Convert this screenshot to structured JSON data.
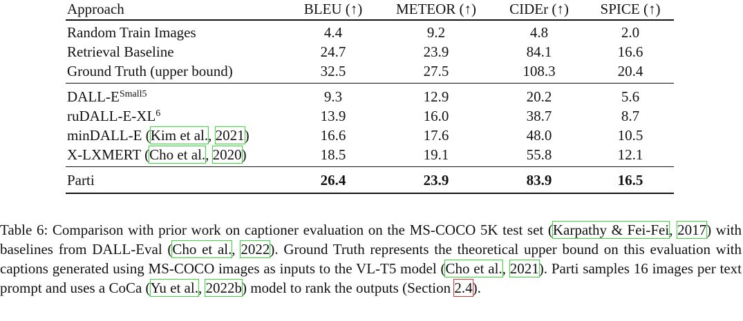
{
  "table": {
    "header": [
      "Approach",
      "BLEU (↑)",
      "METEOR (↑)",
      "CIDEr (↑)",
      "SPICE (↑)"
    ],
    "groups": [
      [
        {
          "name": [
            {
              "t": "Random Train Images"
            }
          ],
          "cells": [
            "4.4",
            "9.2",
            "4.8",
            "2.0"
          ]
        },
        {
          "name": [
            {
              "t": "Retrieval Baseline"
            }
          ],
          "cells": [
            "24.7",
            "23.9",
            "84.1",
            "16.6"
          ]
        },
        {
          "name": [
            {
              "t": "Ground Truth (upper bound)"
            }
          ],
          "cells": [
            "32.5",
            "27.5",
            "108.3",
            "20.4"
          ]
        }
      ],
      [
        {
          "name": [
            {
              "t": "DALL-E"
            },
            {
              "sup": "Small5"
            }
          ],
          "cells": [
            "9.3",
            "12.9",
            "20.2",
            "5.6"
          ]
        },
        {
          "name": [
            {
              "t": "ruDALL-E-XL"
            },
            {
              "sup": "6"
            }
          ],
          "cells": [
            "13.9",
            "16.0",
            "38.7",
            "8.7"
          ]
        },
        {
          "name": [
            {
              "t": "minDALL-E ("
            },
            {
              "cite": "Kim et al."
            },
            {
              "t": ", "
            },
            {
              "cite": "2021"
            },
            {
              "t": ")"
            }
          ],
          "cells": [
            "16.6",
            "17.6",
            "48.0",
            "10.5"
          ]
        },
        {
          "name": [
            {
              "t": "X-LXMERT ("
            },
            {
              "cite": "Cho et al."
            },
            {
              "t": ", "
            },
            {
              "cite": "2020"
            },
            {
              "t": ")"
            }
          ],
          "cells": [
            "18.5",
            "19.1",
            "55.8",
            "12.1"
          ]
        }
      ],
      [
        {
          "name": [
            {
              "t": "Parti"
            }
          ],
          "cells": [
            "26.4",
            "23.9",
            "83.9",
            "16.5"
          ],
          "bold": true
        }
      ]
    ]
  },
  "caption": [
    {
      "t": "Table 6: Comparison with prior work on captioner evaluation on the MS-COCO 5K test set ("
    },
    {
      "cite": "Karpathy & Fei-Fei"
    },
    {
      "t": ", "
    },
    {
      "cite": "2017"
    },
    {
      "t": ") with baselines from DALL-Eval ("
    },
    {
      "cite": "Cho et al."
    },
    {
      "t": ", "
    },
    {
      "cite": "2022"
    },
    {
      "t": "). Ground Truth represents the theoretical upper bound on this evaluation with captions generated using MS-COCO images as inputs to the VL-T5 model ("
    },
    {
      "cite": "Cho et al."
    },
    {
      "t": ", "
    },
    {
      "cite": "2021"
    },
    {
      "t": "). Parti samples 16 images per text prompt and uses a CoCa ("
    },
    {
      "cite": "Yu et al."
    },
    {
      "t": ", "
    },
    {
      "cite": "2022b"
    },
    {
      "t": ") model to rank the outputs (Section "
    },
    {
      "ref": "2.4"
    },
    {
      "t": ")."
    }
  ]
}
